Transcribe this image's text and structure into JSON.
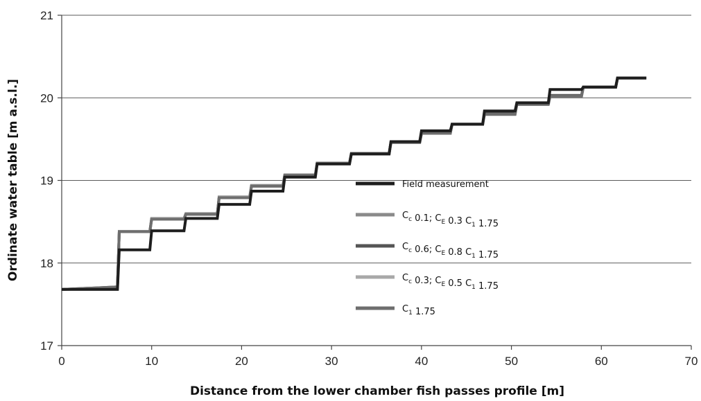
{
  "chart_data": {
    "type": "line",
    "title": "",
    "xlabel": "Distance from the lower chamber fish passes profile [m]",
    "ylabel": "Ordinate water table [m a.s.l.]",
    "xlim": [
      0,
      70
    ],
    "ylim": [
      17,
      21
    ],
    "xticks": [
      "0",
      "10",
      "20",
      "30",
      "40",
      "50",
      "60",
      "70"
    ],
    "yticks": [
      "17",
      "18",
      "19",
      "20",
      "21"
    ],
    "grid": "horizontal",
    "legend_position": "center-right",
    "series": [
      {
        "name": "Field measurement",
        "label_parts": [
          {
            "t": "Field measurement",
            "sub": false
          }
        ],
        "color": "#1e1e1e",
        "x": [
          0,
          6.2,
          6.4,
          9.8,
          10.0,
          13.6,
          13.8,
          17.3,
          17.5,
          20.9,
          21.1,
          24.6,
          24.8,
          28.2,
          28.4,
          32.0,
          32.2,
          36.4,
          36.6,
          39.8,
          40.0,
          43.2,
          43.4,
          46.8,
          47.0,
          50.4,
          50.6,
          54.1,
          54.3,
          57.8,
          58.0,
          61.6,
          61.8,
          65.0
        ],
        "y": [
          17.68,
          17.68,
          18.16,
          18.16,
          18.39,
          18.39,
          18.54,
          18.54,
          18.71,
          18.71,
          18.87,
          18.87,
          19.04,
          19.04,
          19.2,
          19.2,
          19.32,
          19.32,
          19.47,
          19.47,
          19.6,
          19.6,
          19.68,
          19.68,
          19.84,
          19.84,
          19.94,
          19.94,
          20.1,
          20.1,
          20.13,
          20.13,
          20.24,
          20.24
        ]
      },
      {
        "name": "Cc 0.1; CE 0.3 C1 1.75",
        "label_parts": [
          {
            "t": "C",
            "sub": false
          },
          {
            "t": "c",
            "sub": true
          },
          {
            "t": " 0.1; C",
            "sub": false
          },
          {
            "t": "E",
            "sub": true
          },
          {
            "t": " 0.3 C",
            "sub": false
          },
          {
            "t": "1",
            "sub": true
          },
          {
            "t": " 1.75",
            "sub": false
          }
        ],
        "color": "#8a8a8a",
        "x": [
          0,
          6.2,
          6.4,
          9.8,
          10.0,
          13.6,
          13.8,
          17.3,
          17.5,
          20.9,
          21.1,
          24.6,
          24.8,
          28.2,
          28.4,
          32.0,
          32.2,
          36.4,
          36.6,
          39.8,
          40.0,
          43.2,
          43.4,
          46.8,
          47.0,
          50.4,
          50.6,
          54.1,
          54.3,
          57.8,
          58.0,
          61.6,
          61.8,
          65.0
        ],
        "y": [
          17.68,
          17.7,
          18.38,
          18.38,
          18.54,
          18.54,
          18.59,
          18.59,
          18.8,
          18.8,
          18.94,
          18.94,
          19.06,
          19.06,
          19.21,
          19.21,
          19.32,
          19.32,
          19.46,
          19.46,
          19.57,
          19.57,
          19.68,
          19.68,
          19.8,
          19.8,
          19.92,
          19.92,
          20.02,
          20.02,
          20.13,
          20.13,
          20.24,
          20.24
        ]
      },
      {
        "name": "Cc 0.6; CE 0.8 C1 1.75",
        "label_parts": [
          {
            "t": "C",
            "sub": false
          },
          {
            "t": "c",
            "sub": true
          },
          {
            "t": " 0.6; C",
            "sub": false
          },
          {
            "t": "E",
            "sub": true
          },
          {
            "t": " 0.8 C",
            "sub": false
          },
          {
            "t": "1",
            "sub": true
          },
          {
            "t": " 1.75",
            "sub": false
          }
        ],
        "color": "#555555",
        "x": [
          0,
          6.2,
          6.4,
          9.8,
          10.0,
          13.6,
          13.8,
          17.3,
          17.5,
          20.9,
          21.1,
          24.6,
          24.8,
          28.2,
          28.4,
          32.0,
          32.2,
          36.4,
          36.6,
          39.8,
          40.0,
          43.2,
          43.4,
          46.8,
          47.0,
          50.4,
          50.6,
          54.1,
          54.3,
          57.8,
          58.0,
          61.6,
          61.8,
          65.0
        ],
        "y": [
          17.68,
          17.71,
          18.38,
          18.38,
          18.53,
          18.53,
          18.59,
          18.59,
          18.79,
          18.79,
          18.93,
          18.93,
          19.06,
          19.06,
          19.21,
          19.21,
          19.32,
          19.32,
          19.46,
          19.46,
          19.57,
          19.57,
          19.68,
          19.68,
          19.81,
          19.81,
          19.93,
          19.93,
          20.03,
          20.03,
          20.13,
          20.13,
          20.24,
          20.24
        ]
      },
      {
        "name": "Cc 0.3; CE 0.5 C1 1.75",
        "label_parts": [
          {
            "t": "C",
            "sub": false
          },
          {
            "t": "c",
            "sub": true
          },
          {
            "t": " 0.3; C",
            "sub": false
          },
          {
            "t": "E",
            "sub": true
          },
          {
            "t": " 0.5 C",
            "sub": false
          },
          {
            "t": "1",
            "sub": true
          },
          {
            "t": " 1.75",
            "sub": false
          }
        ],
        "color": "#a8a8a8",
        "x": [
          0,
          6.2,
          6.4,
          9.8,
          10.0,
          13.6,
          13.8,
          17.3,
          17.5,
          20.9,
          21.1,
          24.6,
          24.8,
          28.2,
          28.4,
          32.0,
          32.2,
          36.4,
          36.6,
          39.8,
          40.0,
          43.2,
          43.4,
          46.8,
          47.0,
          50.4,
          50.6,
          54.1,
          54.3,
          57.8,
          58.0,
          61.6,
          61.8,
          65.0
        ],
        "y": [
          17.68,
          17.7,
          18.38,
          18.38,
          18.54,
          18.54,
          18.6,
          18.6,
          18.8,
          18.8,
          18.94,
          18.94,
          19.07,
          19.07,
          19.21,
          19.21,
          19.33,
          19.33,
          19.46,
          19.46,
          19.57,
          19.57,
          19.68,
          19.68,
          19.8,
          19.8,
          19.92,
          19.92,
          20.02,
          20.02,
          20.13,
          20.13,
          20.24,
          20.24
        ]
      },
      {
        "name": "C1 1.75",
        "label_parts": [
          {
            "t": "C",
            "sub": false
          },
          {
            "t": "1",
            "sub": true
          },
          {
            "t": " 1.75",
            "sub": false
          }
        ],
        "color": "#6e6e6e",
        "x": [
          0,
          6.2,
          6.4,
          9.8,
          10.0,
          13.6,
          13.8,
          17.3,
          17.5,
          20.9,
          21.1,
          24.6,
          24.8,
          28.2,
          28.4,
          32.0,
          32.2,
          36.4,
          36.6,
          39.8,
          40.0,
          43.2,
          43.4,
          46.8,
          47.0,
          50.4,
          50.6,
          54.1,
          54.3,
          57.8,
          58.0,
          61.6,
          61.8,
          65.0
        ],
        "y": [
          17.68,
          17.71,
          18.38,
          18.38,
          18.53,
          18.53,
          18.59,
          18.59,
          18.79,
          18.79,
          18.93,
          18.93,
          19.06,
          19.06,
          19.21,
          19.21,
          19.32,
          19.32,
          19.46,
          19.46,
          19.57,
          19.57,
          19.68,
          19.68,
          19.8,
          19.8,
          19.92,
          19.92,
          20.02,
          20.02,
          20.13,
          20.13,
          20.24,
          20.24
        ]
      }
    ]
  }
}
